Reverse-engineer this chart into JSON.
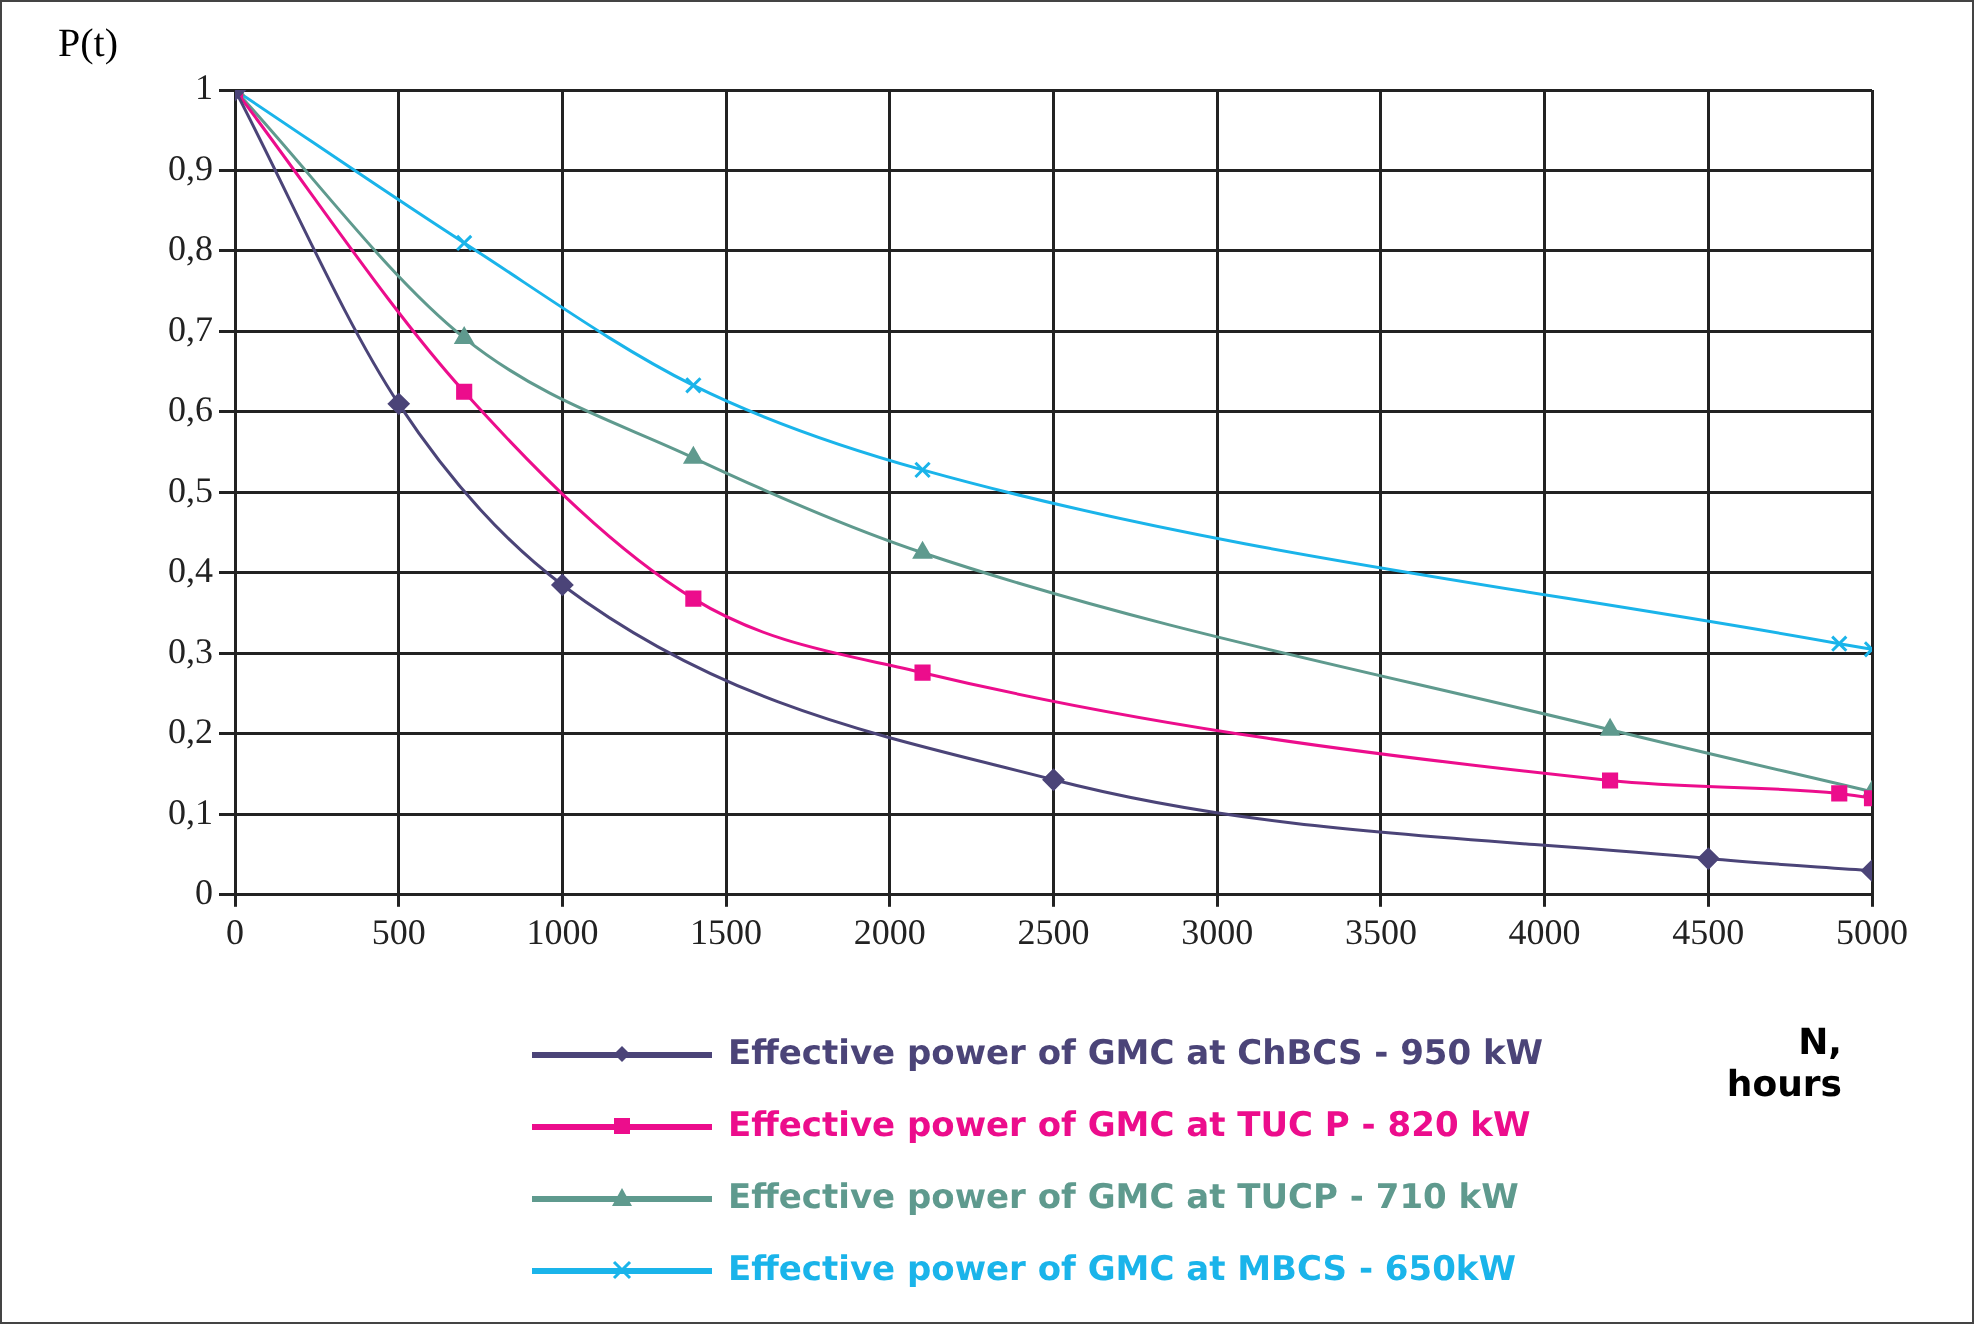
{
  "chart_data": {
    "type": "line",
    "xlabel": "N, hours",
    "ylabel": "P(t)",
    "xlim": [
      0,
      5000
    ],
    "xticks": [
      0,
      500,
      1000,
      1500,
      2000,
      2500,
      3000,
      3500,
      4000,
      4500,
      5000
    ],
    "ylim": [
      0,
      1
    ],
    "yticks": [
      {
        "value": 0,
        "label": "0"
      },
      {
        "value": 0.1,
        "label": "0,1"
      },
      {
        "value": 0.2,
        "label": "0,2"
      },
      {
        "value": 0.3,
        "label": "0,3"
      },
      {
        "value": 0.4,
        "label": "0,4"
      },
      {
        "value": 0.5,
        "label": "0,5"
      },
      {
        "value": 0.6,
        "label": "0,6"
      },
      {
        "value": 0.7,
        "label": "0,7"
      },
      {
        "value": 0.8,
        "label": "0,8"
      },
      {
        "value": 0.9,
        "label": "0,9"
      },
      {
        "value": 1,
        "label": "1"
      }
    ],
    "grid": true,
    "legend": "bottom",
    "series": [
      {
        "name": "Effective power of GMC at ChBCS - 950 kW",
        "color": "#4b4478",
        "marker": "diamond",
        "x": [
          0,
          500,
          1000,
          2500,
          4500,
          5000
        ],
        "values": [
          1,
          0.61,
          0.385,
          0.143,
          0.045,
          0.03
        ]
      },
      {
        "name": "Effective power of GMC at TUC P - 820 kW",
        "color": "#ec0d8c",
        "marker": "square",
        "x": [
          0,
          700,
          1400,
          2100,
          4200,
          4900,
          5000
        ],
        "values": [
          1,
          0.625,
          0.368,
          0.276,
          0.142,
          0.126,
          0.12
        ]
      },
      {
        "name": "Effective power of GMC at TUCP - 710 kW",
        "color": "#5f9a8e",
        "marker": "triangle",
        "x": [
          0,
          700,
          1400,
          2100,
          4200,
          5000
        ],
        "values": [
          1,
          0.692,
          0.543,
          0.425,
          0.205,
          0.128
        ]
      },
      {
        "name": "Effective power of GMC at MBCS - 650kW",
        "color": "#1ab4ea",
        "marker": "cross",
        "x": [
          0,
          700,
          1400,
          2100,
          4900,
          5000
        ],
        "values": [
          1,
          0.81,
          0.633,
          0.528,
          0.312,
          0.305
        ]
      }
    ]
  }
}
